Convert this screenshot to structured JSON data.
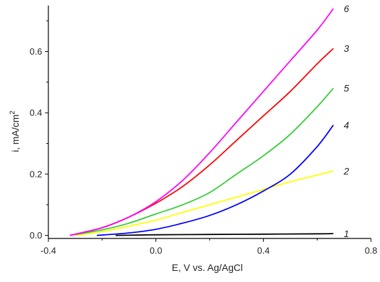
{
  "chart_data": {
    "type": "line",
    "title": "",
    "xlabel": "E, V vs. Ag/AgCl",
    "ylabel_main": "i, mA/cm",
    "ylabel_sup": "2",
    "xlim": [
      -0.4,
      0.8
    ],
    "ylim": [
      -0.01,
      0.75
    ],
    "x_ticks": [
      -0.4,
      0.0,
      0.4,
      0.8
    ],
    "x_tick_labels": [
      "-0.4",
      "0.0",
      "0.4",
      "0.8"
    ],
    "y_ticks": [
      0.0,
      0.2,
      0.4,
      0.6
    ],
    "y_tick_labels": [
      "0.0",
      "0.2",
      "0.4",
      "0.6"
    ],
    "grid": false,
    "legend": "none",
    "series": [
      {
        "name": "1",
        "color": "#000000",
        "x": [
          -0.15,
          0.0,
          0.2,
          0.4,
          0.6,
          0.66
        ],
        "y": [
          0.0,
          0.002,
          0.003,
          0.004,
          0.005,
          0.006
        ]
      },
      {
        "name": "2",
        "color": "#ffff00",
        "x": [
          -0.3,
          -0.2,
          -0.1,
          0.0,
          0.1,
          0.2,
          0.3,
          0.4,
          0.5,
          0.66
        ],
        "y": [
          0.0,
          0.012,
          0.03,
          0.05,
          0.075,
          0.1,
          0.125,
          0.15,
          0.175,
          0.21
        ]
      },
      {
        "name": "3",
        "color": "#ff0000",
        "x": [
          -0.32,
          -0.2,
          -0.1,
          0.0,
          0.1,
          0.2,
          0.3,
          0.4,
          0.5,
          0.6,
          0.66
        ],
        "y": [
          0.0,
          0.025,
          0.06,
          0.105,
          0.16,
          0.23,
          0.31,
          0.39,
          0.47,
          0.56,
          0.61
        ]
      },
      {
        "name": "4",
        "color": "#0000ff",
        "x": [
          -0.22,
          -0.1,
          0.0,
          0.1,
          0.2,
          0.3,
          0.4,
          0.5,
          0.6,
          0.66
        ],
        "y": [
          0.0,
          0.008,
          0.02,
          0.04,
          0.065,
          0.1,
          0.145,
          0.2,
          0.29,
          0.36
        ]
      },
      {
        "name": "5",
        "color": "#33cc33",
        "x": [
          -0.32,
          -0.2,
          -0.1,
          0.0,
          0.1,
          0.2,
          0.3,
          0.4,
          0.5,
          0.6,
          0.66
        ],
        "y": [
          0.0,
          0.018,
          0.04,
          0.07,
          0.1,
          0.14,
          0.2,
          0.26,
          0.33,
          0.42,
          0.48
        ]
      },
      {
        "name": "6",
        "color": "#ff00ff",
        "x": [
          -0.32,
          -0.2,
          -0.1,
          0.0,
          0.1,
          0.2,
          0.3,
          0.4,
          0.5,
          0.6,
          0.66
        ],
        "y": [
          0.0,
          0.025,
          0.06,
          0.11,
          0.18,
          0.27,
          0.37,
          0.47,
          0.57,
          0.67,
          0.74
        ]
      }
    ]
  }
}
